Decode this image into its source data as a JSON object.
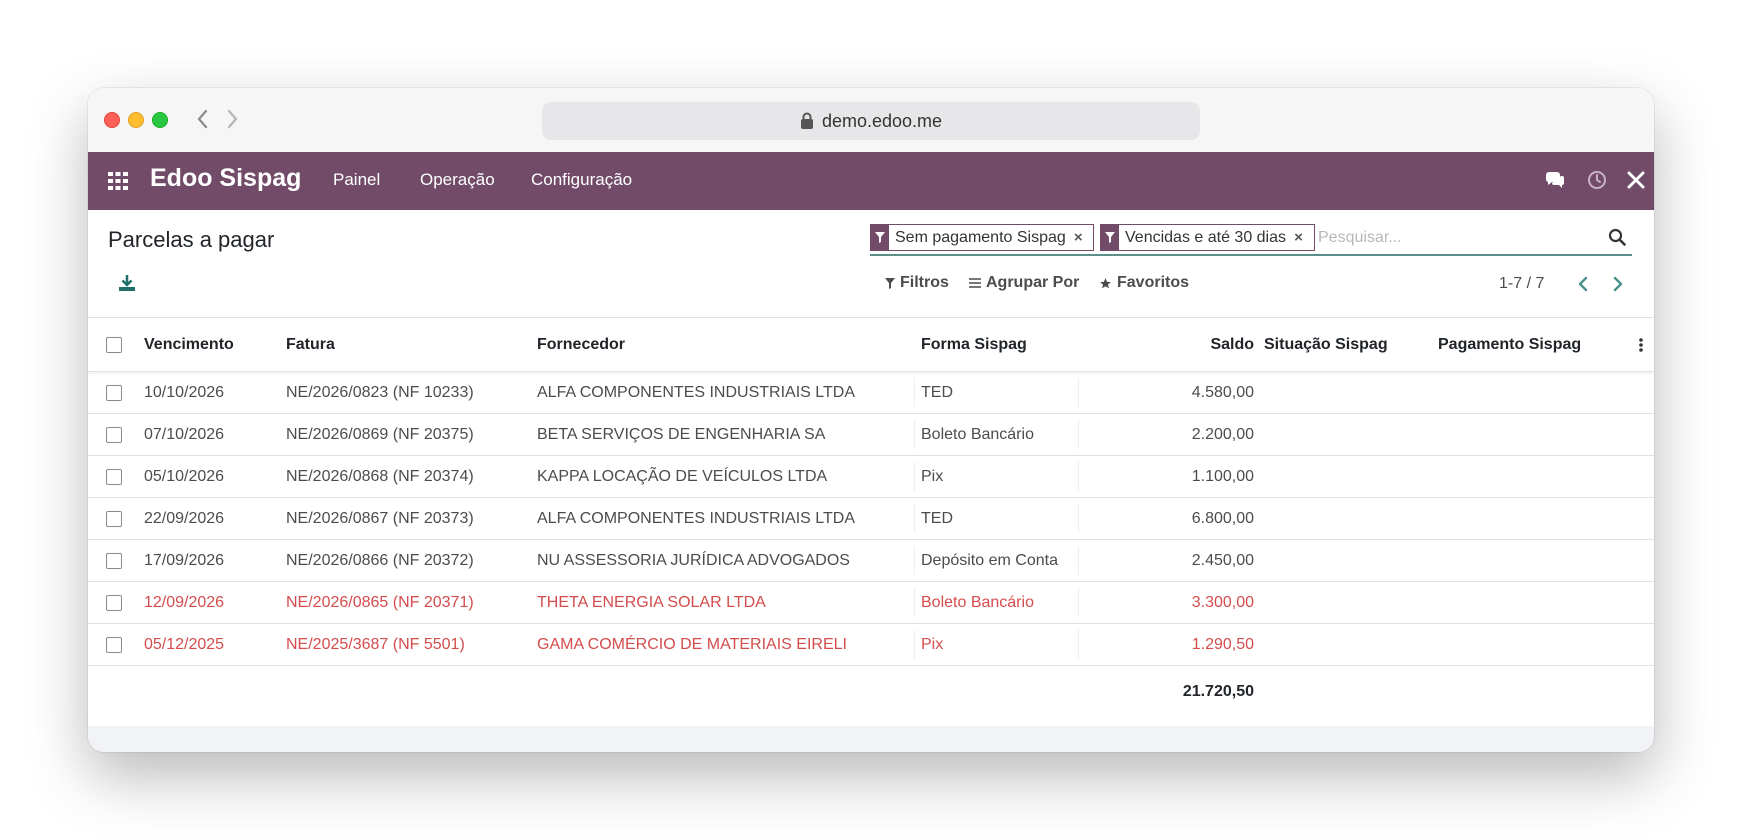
{
  "browser": {
    "url": "demo.edoo.me"
  },
  "app": {
    "brand": "Edoo Sispag",
    "menu": [
      "Painel",
      "Operação",
      "Configuração"
    ],
    "accent_color": "#714b67"
  },
  "control": {
    "title": "Parcelas a pagar",
    "facets": [
      "Sem pagamento Sispag",
      "Vencidas e até 30 dias"
    ],
    "search_placeholder": "Pesquisar...",
    "filters_label": "Filtros",
    "groupby_label": "Agrupar Por",
    "favorites_label": "Favoritos",
    "pager": "1-7 / 7"
  },
  "table": {
    "headers": {
      "vencimento": "Vencimento",
      "fatura": "Fatura",
      "fornecedor": "Fornecedor",
      "forma": "Forma Sispag",
      "saldo": "Saldo",
      "situacao": "Situação Sispag",
      "pagamento": "Pagamento Sispag"
    },
    "rows": [
      {
        "vencimento": "10/10/2026",
        "fatura": "NE/2026/0823 (NF 10233)",
        "fornecedor": "ALFA COMPONENTES INDUSTRIAIS LTDA",
        "forma": "TED",
        "saldo": "4.580,00",
        "overdue": false
      },
      {
        "vencimento": "07/10/2026",
        "fatura": "NE/2026/0869 (NF 20375)",
        "fornecedor": "BETA SERVIÇOS DE ENGENHARIA SA",
        "forma": "Boleto Bancário",
        "saldo": "2.200,00",
        "overdue": false
      },
      {
        "vencimento": "05/10/2026",
        "fatura": "NE/2026/0868 (NF 20374)",
        "fornecedor": "KAPPA LOCAÇÃO DE VEÍCULOS LTDA",
        "forma": "Pix",
        "saldo": "1.100,00",
        "overdue": false
      },
      {
        "vencimento": "22/09/2026",
        "fatura": "NE/2026/0867 (NF 20373)",
        "fornecedor": "ALFA COMPONENTES INDUSTRIAIS LTDA",
        "forma": "TED",
        "saldo": "6.800,00",
        "overdue": false
      },
      {
        "vencimento": "17/09/2026",
        "fatura": "NE/2026/0866 (NF 20372)",
        "fornecedor": "NU ASSESSORIA JURÍDICA ADVOGADOS",
        "forma": "Depósito em Conta",
        "saldo": "2.450,00",
        "overdue": false
      },
      {
        "vencimento": "12/09/2026",
        "fatura": "NE/2026/0865 (NF 20371)",
        "fornecedor": "THETA ENERGIA SOLAR LTDA",
        "forma": "Boleto Bancário",
        "saldo": "3.300,00",
        "overdue": true
      },
      {
        "vencimento": "05/12/2025",
        "fatura": "NE/2025/3687 (NF 5501)",
        "fornecedor": "GAMA COMÉRCIO DE MATERIAIS EIRELI",
        "forma": "Pix",
        "saldo": "1.290,50",
        "overdue": true
      }
    ],
    "total": "21.720,50",
    "overdue_color": "#d44c4c"
  }
}
